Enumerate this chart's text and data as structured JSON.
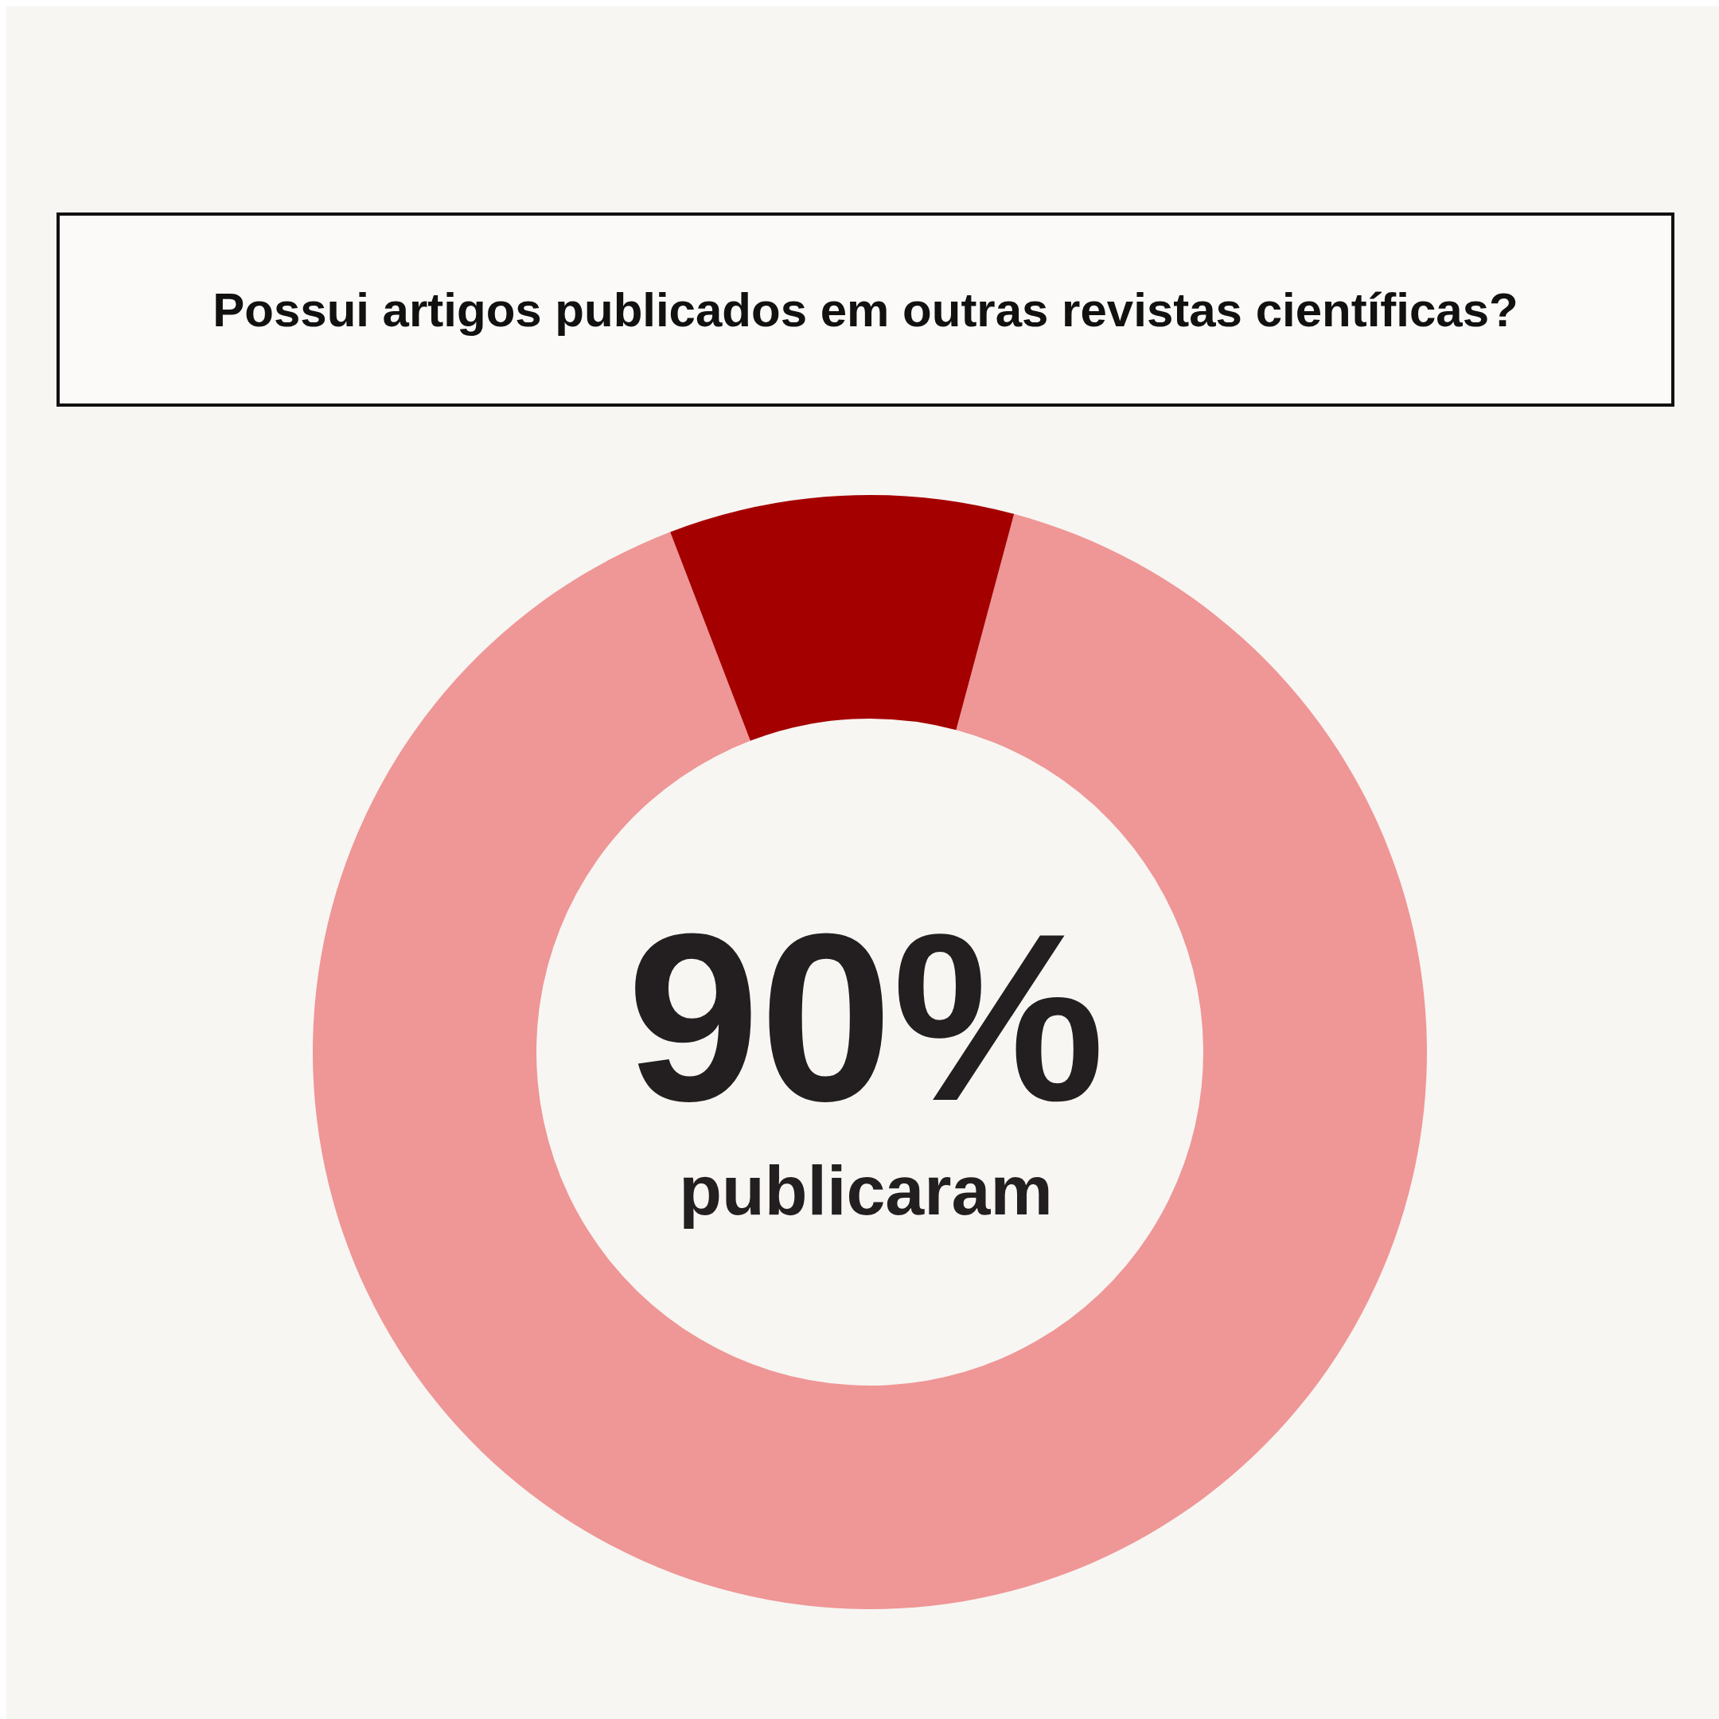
{
  "chart_data": {
    "type": "donut",
    "title": "Possui artigos publicados em outras revistas científicas?",
    "categories": [
      "publicaram",
      null
    ],
    "values": [
      90,
      10
    ],
    "colors": [
      "#ef9696",
      "#a50000"
    ],
    "value_labels": [
      "90%",
      null
    ]
  }
}
